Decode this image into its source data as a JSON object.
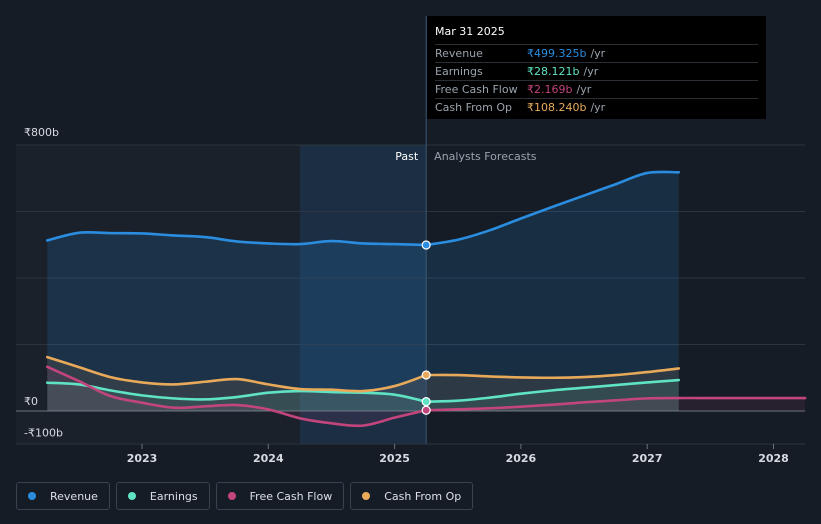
{
  "colors": {
    "background": "#151c26",
    "past_bg": "#1a212b",
    "highlight": "#1d3a57",
    "revenue": "#2b8de0",
    "earnings": "#5fe3c3",
    "free_cash_flow": "#c2457c",
    "cash_from_op": "#e8aa5a",
    "grid": "#2c343e",
    "text": "#c8cdd3"
  },
  "tooltip": {
    "date": "Mar 31 2025",
    "rows": [
      {
        "label": "Revenue",
        "value": "₹499.325b",
        "unit": "/yr",
        "color": "#2b8de0"
      },
      {
        "label": "Earnings",
        "value": "₹28.121b",
        "unit": "/yr",
        "color": "#5fe3c3"
      },
      {
        "label": "Free Cash Flow",
        "value": "₹2.169b",
        "unit": "/yr",
        "color": "#c2457c"
      },
      {
        "label": "Cash From Op",
        "value": "₹108.240b",
        "unit": "/yr",
        "color": "#e8aa5a"
      }
    ]
  },
  "chart_data": {
    "type": "area",
    "y_unit": "₹b",
    "ylim": [
      -100,
      800
    ],
    "xlim": [
      2022.2,
      2028.25
    ],
    "y_tick_labels": [
      {
        "value": 800,
        "label": "₹800b"
      },
      {
        "value": 0,
        "label": "₹0"
      },
      {
        "value": -100,
        "label": "-₹100b"
      }
    ],
    "x_ticks": [
      2023,
      2024,
      2025,
      2026,
      2027,
      2028
    ],
    "x_tick_labels": [
      "2023",
      "2024",
      "2025",
      "2026",
      "2027",
      "2028"
    ],
    "gridlines": [
      800,
      600,
      400,
      200,
      0
    ],
    "divider_x": 2025.25,
    "highlight_range": [
      2024.25,
      2025.25
    ],
    "past_label": "Past",
    "forecast_label": "Analysts Forecasts",
    "series": [
      {
        "key": "revenue",
        "name": "Revenue",
        "points": [
          [
            2022.25,
            513
          ],
          [
            2022.5,
            536
          ],
          [
            2022.75,
            535
          ],
          [
            2023.0,
            534
          ],
          [
            2023.25,
            528
          ],
          [
            2023.5,
            523
          ],
          [
            2023.75,
            510
          ],
          [
            2024.0,
            504
          ],
          [
            2024.25,
            502
          ],
          [
            2024.5,
            511
          ],
          [
            2024.75,
            504
          ],
          [
            2025.0,
            502
          ],
          [
            2025.25,
            499.3
          ]
        ],
        "forecast": [
          [
            2025.25,
            499.3
          ],
          [
            2025.5,
            515
          ],
          [
            2025.75,
            543
          ],
          [
            2026.0,
            579
          ],
          [
            2026.25,
            614
          ],
          [
            2026.5,
            648
          ],
          [
            2026.75,
            682
          ],
          [
            2027.0,
            716
          ],
          [
            2027.25,
            718
          ]
        ]
      },
      {
        "key": "earnings",
        "name": "Earnings",
        "points": [
          [
            2022.25,
            85
          ],
          [
            2022.5,
            80
          ],
          [
            2022.75,
            62
          ],
          [
            2023.0,
            47
          ],
          [
            2023.25,
            38
          ],
          [
            2023.5,
            35
          ],
          [
            2023.75,
            42
          ],
          [
            2024.0,
            55
          ],
          [
            2024.25,
            60
          ],
          [
            2024.5,
            57
          ],
          [
            2024.75,
            55
          ],
          [
            2025.0,
            49
          ],
          [
            2025.25,
            28.1
          ]
        ],
        "forecast": [
          [
            2025.25,
            28.1
          ],
          [
            2025.5,
            31
          ],
          [
            2025.75,
            40
          ],
          [
            2026.0,
            52
          ],
          [
            2026.25,
            62
          ],
          [
            2026.5,
            70
          ],
          [
            2026.75,
            78
          ],
          [
            2027.0,
            86
          ],
          [
            2027.25,
            93
          ]
        ]
      },
      {
        "key": "free_cash_flow",
        "name": "Free Cash Flow",
        "points": [
          [
            2022.25,
            133
          ],
          [
            2022.5,
            90
          ],
          [
            2022.75,
            45
          ],
          [
            2023.0,
            25
          ],
          [
            2023.25,
            10
          ],
          [
            2023.5,
            14
          ],
          [
            2023.75,
            18
          ],
          [
            2024.0,
            5
          ],
          [
            2024.25,
            -22
          ],
          [
            2024.5,
            -37
          ],
          [
            2024.75,
            -44
          ],
          [
            2025.0,
            -20
          ],
          [
            2025.25,
            2.2
          ]
        ],
        "forecast": [
          [
            2025.25,
            2.2
          ],
          [
            2025.5,
            5
          ],
          [
            2025.75,
            8
          ],
          [
            2026.0,
            13
          ],
          [
            2026.25,
            19
          ],
          [
            2026.5,
            26
          ],
          [
            2026.75,
            32
          ],
          [
            2027.0,
            38
          ],
          [
            2027.25,
            39
          ],
          [
            2027.5,
            39
          ],
          [
            2027.75,
            39
          ],
          [
            2028.0,
            39
          ],
          [
            2028.25,
            39
          ]
        ]
      },
      {
        "key": "cash_from_op",
        "name": "Cash From Op",
        "points": [
          [
            2022.25,
            162
          ],
          [
            2022.5,
            132
          ],
          [
            2022.75,
            102
          ],
          [
            2023.0,
            86
          ],
          [
            2023.25,
            80
          ],
          [
            2023.5,
            88
          ],
          [
            2023.75,
            96
          ],
          [
            2024.0,
            80
          ],
          [
            2024.25,
            66
          ],
          [
            2024.5,
            64
          ],
          [
            2024.75,
            60
          ],
          [
            2025.0,
            75
          ],
          [
            2025.25,
            108.2
          ]
        ],
        "forecast": [
          [
            2025.25,
            108.2
          ],
          [
            2025.5,
            108
          ],
          [
            2025.75,
            104
          ],
          [
            2026.0,
            101
          ],
          [
            2026.25,
            100
          ],
          [
            2026.5,
            102
          ],
          [
            2026.75,
            108
          ],
          [
            2027.0,
            117
          ],
          [
            2027.25,
            128
          ]
        ]
      }
    ]
  },
  "legend": [
    {
      "key": "revenue",
      "label": "Revenue",
      "color": "#2b8de0"
    },
    {
      "key": "earnings",
      "label": "Earnings",
      "color": "#5fe3c3"
    },
    {
      "key": "free_cash_flow",
      "label": "Free Cash Flow",
      "color": "#c2457c"
    },
    {
      "key": "cash_from_op",
      "label": "Cash From Op",
      "color": "#e8aa5a"
    }
  ]
}
